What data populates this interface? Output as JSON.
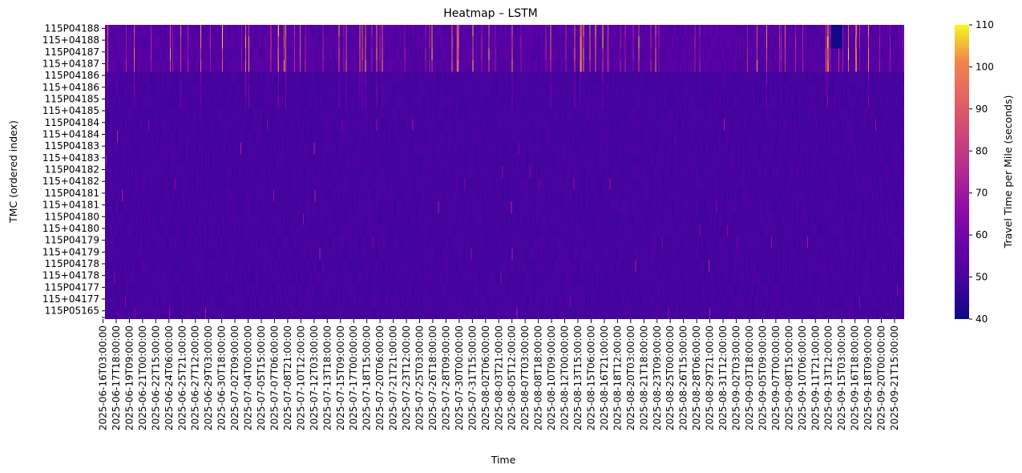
{
  "chart_data": {
    "type": "heatmap",
    "title": "Heatmap – LSTM",
    "xlabel": "Time",
    "ylabel": "TMC (ordered index)",
    "colorbar_label": "Travel Time per Mile (seconds)",
    "colormap": "plasma",
    "vmin": 40,
    "vmax": 110,
    "colorbar_ticks": [
      40,
      50,
      60,
      70,
      80,
      90,
      100,
      110
    ],
    "y_tick_labels": [
      "115P04188",
      "115+04188",
      "115P04187",
      "115+04187",
      "115P04186",
      "115+04186",
      "115P04185",
      "115+04185",
      "115P04184",
      "115+04184",
      "115P04183",
      "115+04183",
      "115P04182",
      "115+04182",
      "115P04181",
      "115+04181",
      "115P04180",
      "115+04180",
      "115P04179",
      "115+04179",
      "115P04178",
      "115+04178",
      "115P04177",
      "115+04177",
      "115P05165"
    ],
    "x_tick_labels": [
      "2025-06-16T03:00:00",
      "2025-06-17T18:00:00",
      "2025-06-19T09:00:00",
      "2025-06-21T00:00:00",
      "2025-06-22T15:00:00",
      "2025-06-24T06:00:00",
      "2025-06-25T21:00:00",
      "2025-06-27T12:00:00",
      "2025-06-29T03:00:00",
      "2025-06-30T18:00:00",
      "2025-07-02T09:00:00",
      "2025-07-04T00:00:00",
      "2025-07-05T15:00:00",
      "2025-07-07T06:00:00",
      "2025-07-08T21:00:00",
      "2025-07-10T12:00:00",
      "2025-07-12T03:00:00",
      "2025-07-13T18:00:00",
      "2025-07-15T09:00:00",
      "2025-07-17T00:00:00",
      "2025-07-18T15:00:00",
      "2025-07-20T06:00:00",
      "2025-07-21T21:00:00",
      "2025-07-23T12:00:00",
      "2025-07-25T03:00:00",
      "2025-07-26T18:00:00",
      "2025-07-28T09:00:00",
      "2025-07-30T00:00:00",
      "2025-07-31T15:00:00",
      "2025-08-02T06:00:00",
      "2025-08-03T21:00:00",
      "2025-08-05T12:00:00",
      "2025-08-07T03:00:00",
      "2025-08-08T18:00:00",
      "2025-08-10T09:00:00",
      "2025-08-12T00:00:00",
      "2025-08-13T15:00:00",
      "2025-08-15T06:00:00",
      "2025-08-16T21:00:00",
      "2025-08-18T12:00:00",
      "2025-08-20T03:00:00",
      "2025-08-21T18:00:00",
      "2025-08-23T09:00:00",
      "2025-08-25T00:00:00",
      "2025-08-26T15:00:00",
      "2025-08-28T06:00:00",
      "2025-08-29T21:00:00",
      "2025-08-31T12:00:00",
      "2025-09-02T03:00:00",
      "2025-09-03T18:00:00",
      "2025-09-05T09:00:00",
      "2025-09-07T00:00:00",
      "2025-09-08T15:00:00",
      "2025-09-10T06:00:00",
      "2025-09-11T21:00:00",
      "2025-09-13T12:00:00",
      "2025-09-15T03:00:00",
      "2025-09-16T18:00:00",
      "2025-09-18T09:00:00",
      "2025-09-20T00:00:00",
      "2025-09-21T15:00:00"
    ]
  }
}
